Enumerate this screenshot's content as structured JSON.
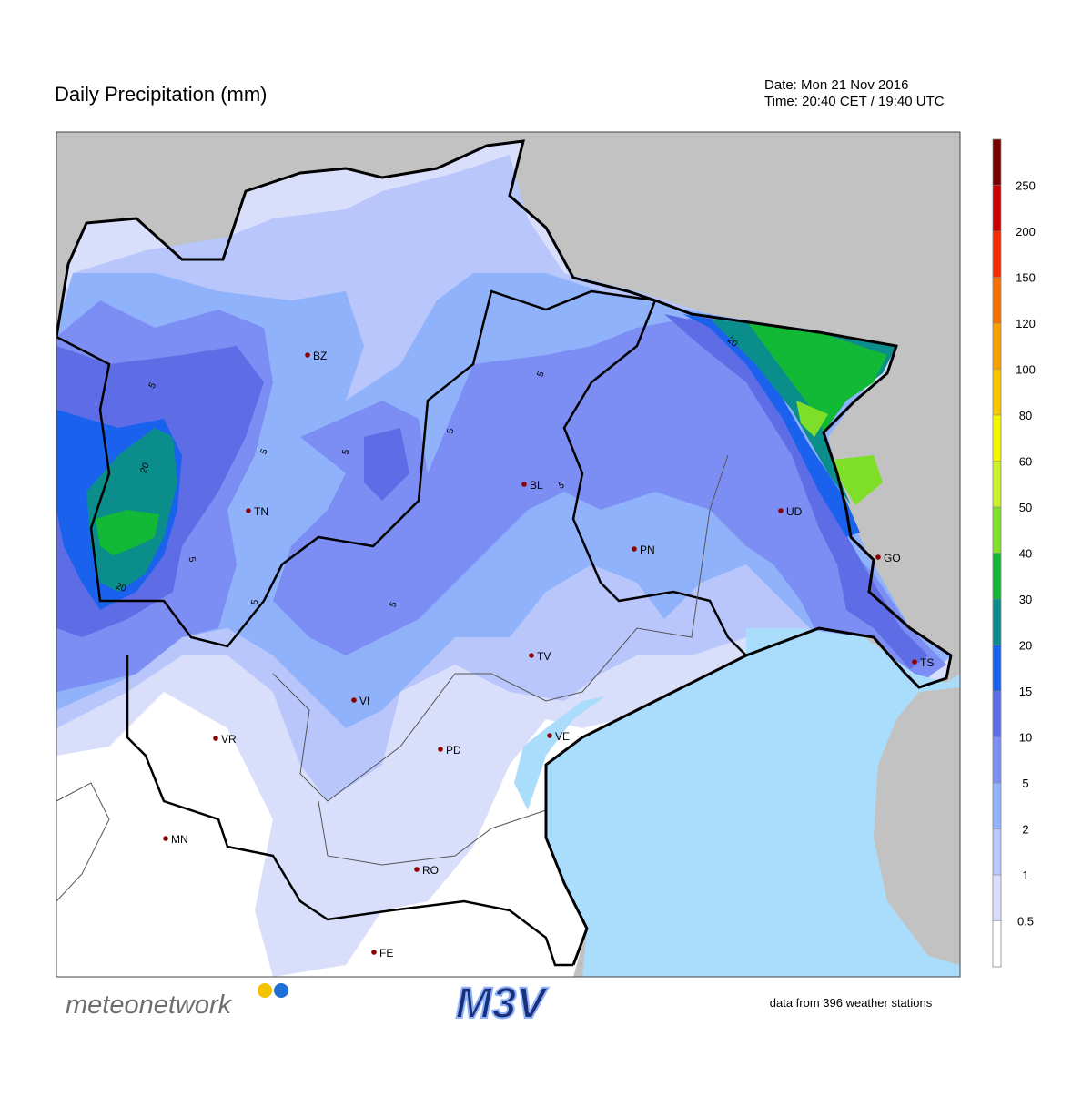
{
  "header": {
    "title": "Daily Precipitation (mm)",
    "date": "Date: Mon 21 Nov 2016",
    "time": "Time: 20:40 CET / 19:40 UTC"
  },
  "colorbar": {
    "levels": [
      0.5,
      1,
      2,
      5,
      10,
      15,
      20,
      30,
      40,
      50,
      60,
      80,
      100,
      120,
      150,
      200,
      250
    ],
    "colors": [
      "#ffffff",
      "#d9defb",
      "#b8c6fb",
      "#8fb2fa",
      "#7c8df3",
      "#5e6de6",
      "#1a62ee",
      "#0b8d8c",
      "#12b936",
      "#7fdf28",
      "#c9f02b",
      "#f6f500",
      "#f5c600",
      "#f59e00",
      "#f57000",
      "#f52d00",
      "#c80000",
      "#7a0000"
    ]
  },
  "cities": [
    "BZ",
    "TN",
    "BL",
    "UD",
    "PN",
    "GO",
    "TS",
    "TV",
    "VI",
    "VR",
    "PD",
    "VE",
    "MN",
    "RO",
    "FE"
  ],
  "contour_labels": [
    5,
    5,
    5,
    5,
    5,
    5,
    5,
    5,
    5,
    20,
    20,
    20
  ],
  "footer": {
    "brand": "meteonetwork",
    "logo": "M3V",
    "source": "data from 396 weather stations"
  }
}
